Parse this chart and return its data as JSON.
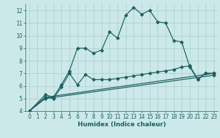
{
  "xlabel": "Humidex (Indice chaleur)",
  "background_color": "#cce8e8",
  "grid_color": "#aacccc",
  "line_color": "#1a6060",
  "xlim": [
    -0.5,
    23.5
  ],
  "ylim": [
    4,
    12.5
  ],
  "xticks": [
    0,
    1,
    2,
    3,
    4,
    5,
    6,
    7,
    8,
    9,
    10,
    11,
    12,
    13,
    14,
    15,
    16,
    17,
    18,
    19,
    20,
    21,
    22,
    23
  ],
  "yticks": [
    4,
    5,
    6,
    7,
    8,
    9,
    10,
    11,
    12
  ],
  "series": [
    {
      "x": [
        0,
        2,
        3,
        4,
        5,
        6,
        7,
        8,
        9,
        10,
        11,
        12,
        13,
        14,
        15,
        16,
        17,
        18,
        19,
        20,
        21,
        22,
        23
      ],
      "y": [
        4.0,
        5.3,
        5.1,
        6.1,
        7.2,
        9.0,
        9.0,
        8.6,
        8.85,
        10.3,
        9.8,
        11.6,
        12.25,
        11.7,
        12.0,
        11.1,
        11.0,
        9.6,
        9.5,
        7.5,
        6.5,
        7.0,
        7.0
      ]
    },
    {
      "x": [
        0,
        2,
        3,
        4,
        5,
        6,
        7,
        8,
        9,
        10,
        11,
        12,
        13,
        14,
        15,
        16,
        17,
        18,
        19,
        20,
        21,
        22,
        23
      ],
      "y": [
        4.0,
        5.1,
        5.0,
        5.9,
        7.0,
        6.1,
        6.9,
        6.5,
        6.5,
        6.5,
        6.6,
        6.7,
        6.8,
        6.9,
        7.0,
        7.1,
        7.2,
        7.3,
        7.5,
        7.6,
        6.55,
        7.0,
        7.0
      ]
    },
    {
      "x": [
        0,
        2,
        23
      ],
      "y": [
        4.0,
        5.1,
        7.0
      ]
    },
    {
      "x": [
        0,
        2,
        23
      ],
      "y": [
        4.0,
        5.0,
        6.85
      ]
    }
  ]
}
